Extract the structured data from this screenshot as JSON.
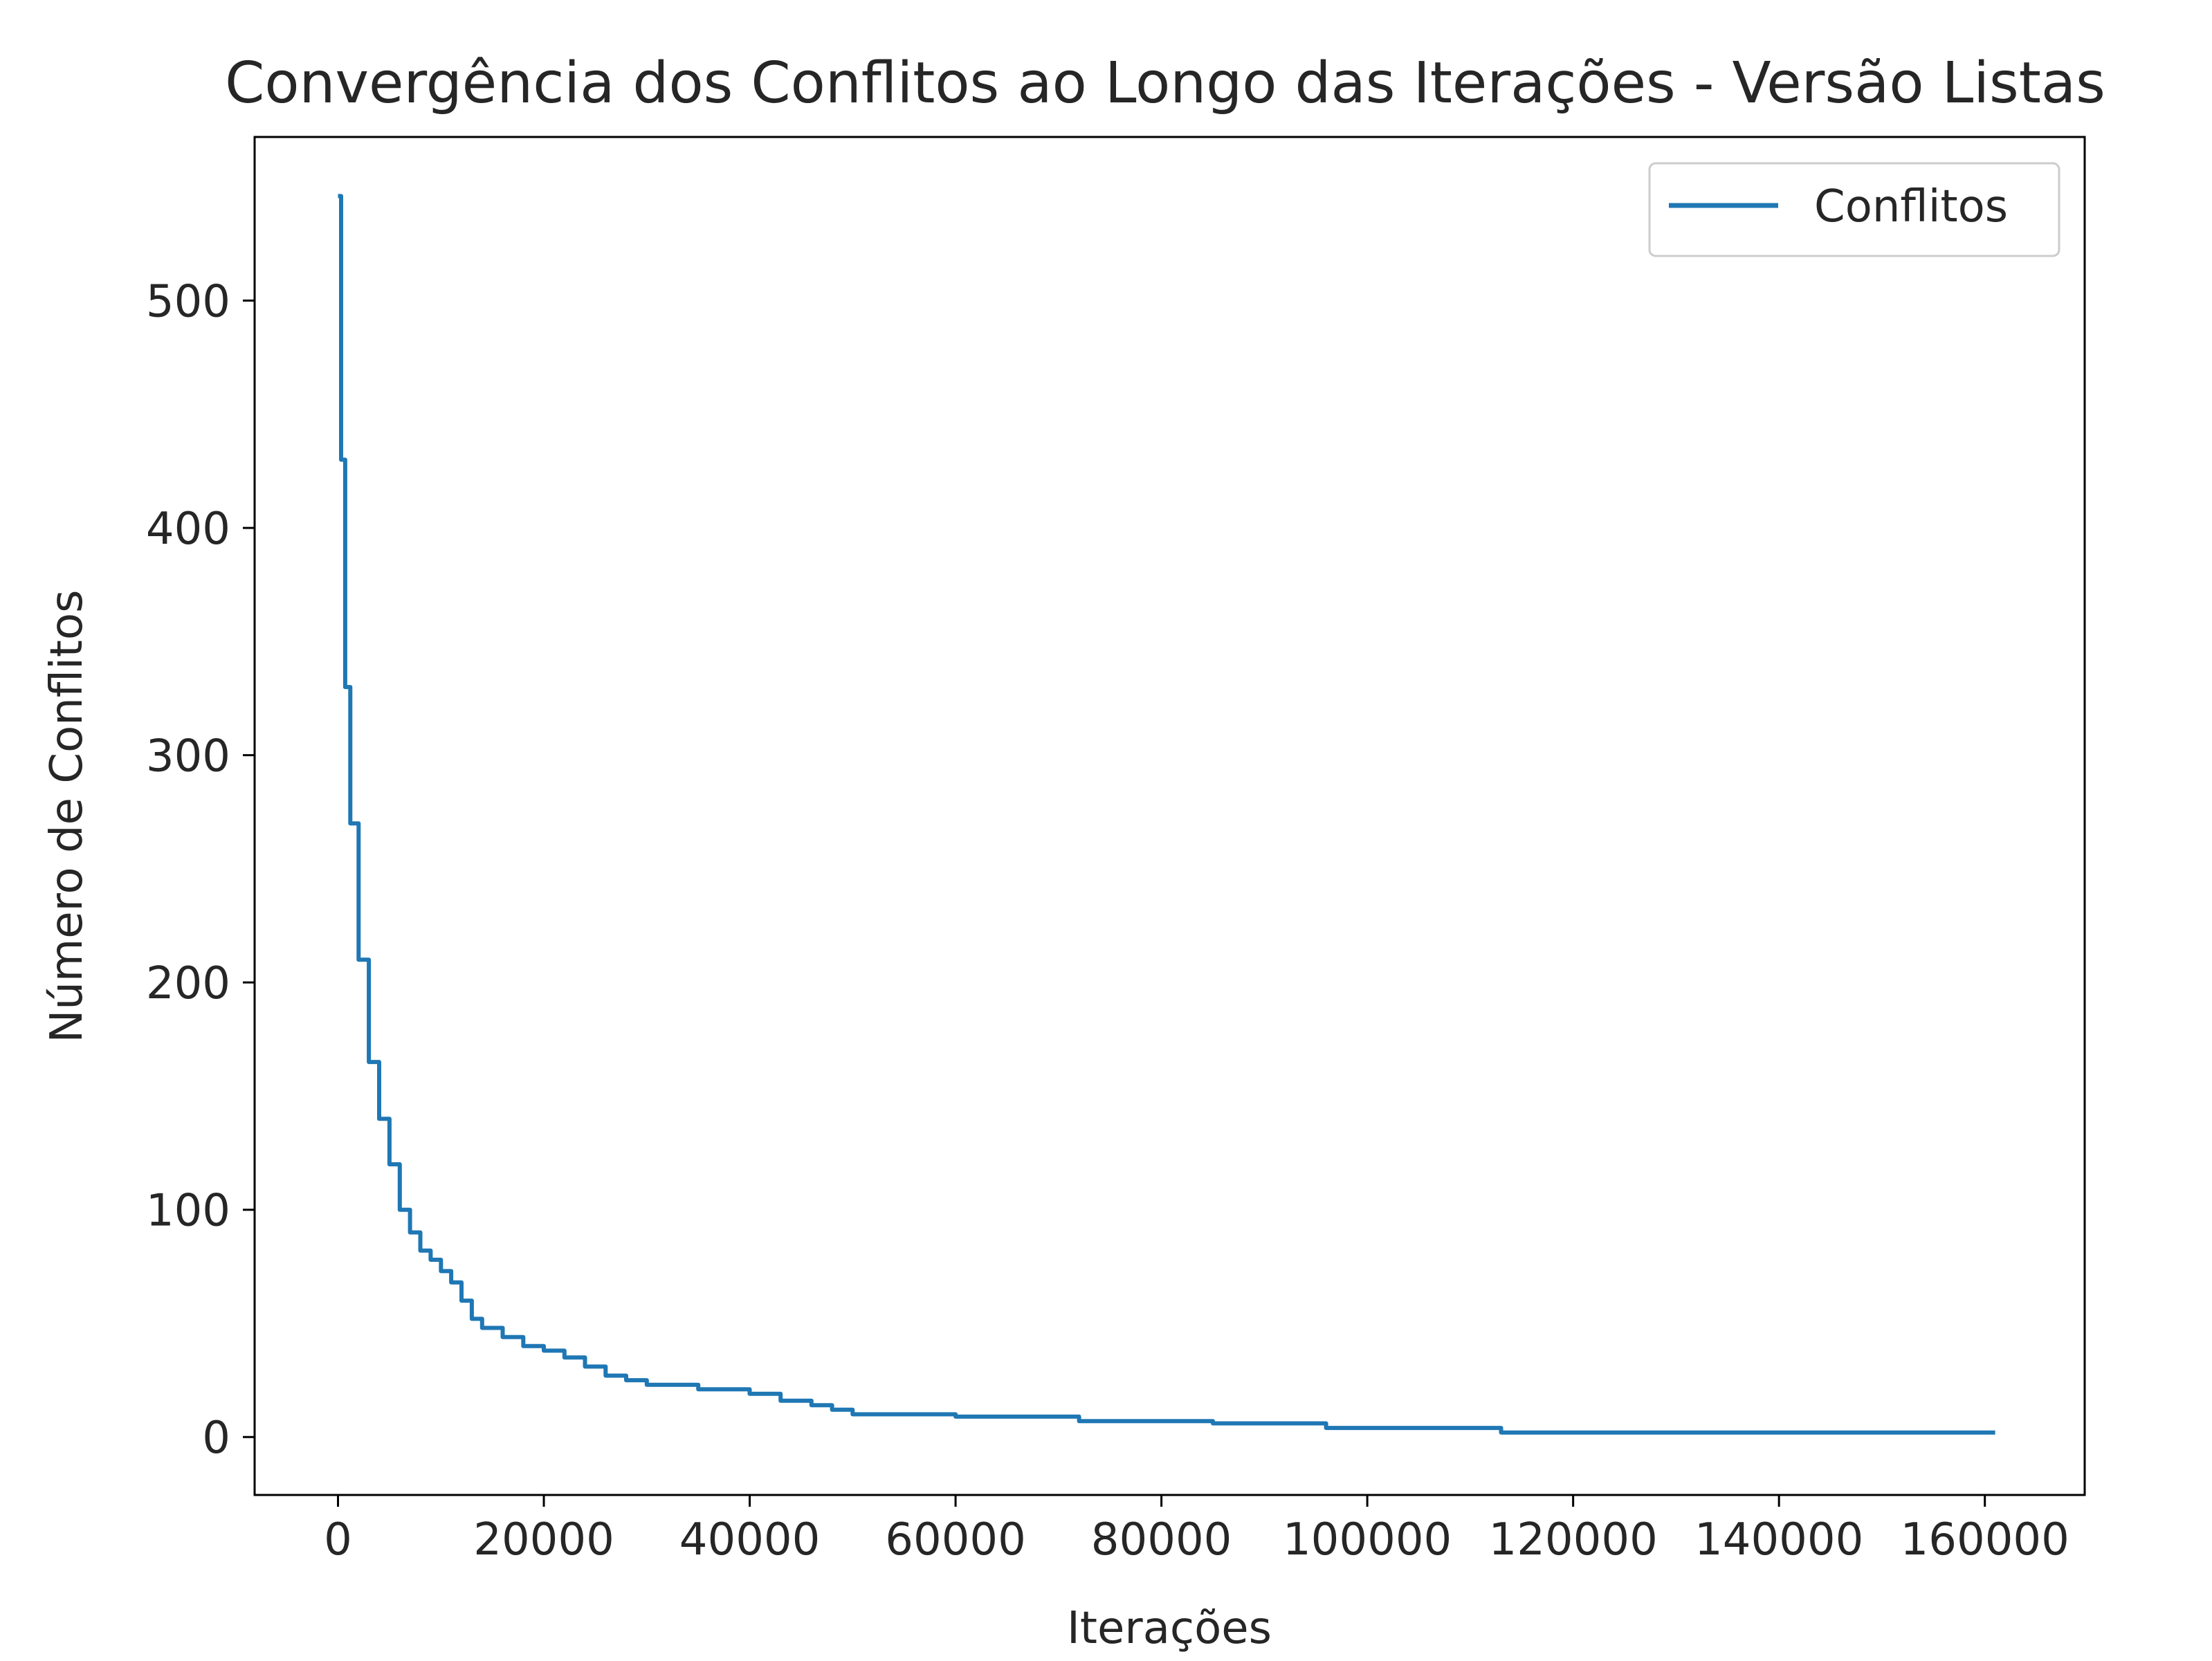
{
  "chart_data": {
    "type": "line",
    "title": "Convergência dos Conflitos ao Longo das Iterações - Versão Listas",
    "xlabel": "Iterações",
    "ylabel": "Número de Conflitos",
    "xlim": [
      -8100,
      169700
    ],
    "ylim": [
      -25.5,
      572
    ],
    "xticks": [
      0,
      20000,
      40000,
      60000,
      80000,
      100000,
      120000,
      140000,
      160000
    ],
    "xtick_labels": [
      "0",
      "20000",
      "40000",
      "60000",
      "80000",
      "100000",
      "120000",
      "140000",
      "160000"
    ],
    "yticks": [
      0,
      100,
      200,
      300,
      400,
      500
    ],
    "ytick_labels": [
      "0",
      "100",
      "200",
      "300",
      "400",
      "500"
    ],
    "grid": false,
    "legend": {
      "position": "upper-right",
      "entries": [
        "Conflitos"
      ]
    },
    "series": [
      {
        "name": "Conflitos",
        "color": "#1f77b4",
        "x": [
          0,
          300,
          700,
          1200,
          2000,
          3000,
          4000,
          5000,
          6000,
          7000,
          8000,
          9000,
          10000,
          11000,
          12000,
          13000,
          14000,
          16000,
          18000,
          20000,
          22000,
          24000,
          26000,
          28000,
          30000,
          35000,
          40000,
          43000,
          46000,
          48000,
          50000,
          55000,
          60000,
          65000,
          70000,
          72000,
          75000,
          80000,
          85000,
          90000,
          93000,
          96000,
          100000,
          105000,
          110000,
          113000,
          120000,
          130000,
          140000,
          150000,
          161000
        ],
        "y": [
          546,
          430,
          330,
          270,
          210,
          165,
          140,
          120,
          100,
          90,
          82,
          78,
          73,
          68,
          60,
          52,
          48,
          44,
          40,
          38,
          35,
          31,
          27,
          25,
          23,
          21,
          19,
          16,
          14,
          12,
          10,
          10,
          9,
          9,
          9,
          7,
          7,
          7,
          6,
          6,
          6,
          4,
          4,
          4,
          4,
          2,
          2,
          2,
          2,
          2,
          2
        ]
      }
    ]
  }
}
